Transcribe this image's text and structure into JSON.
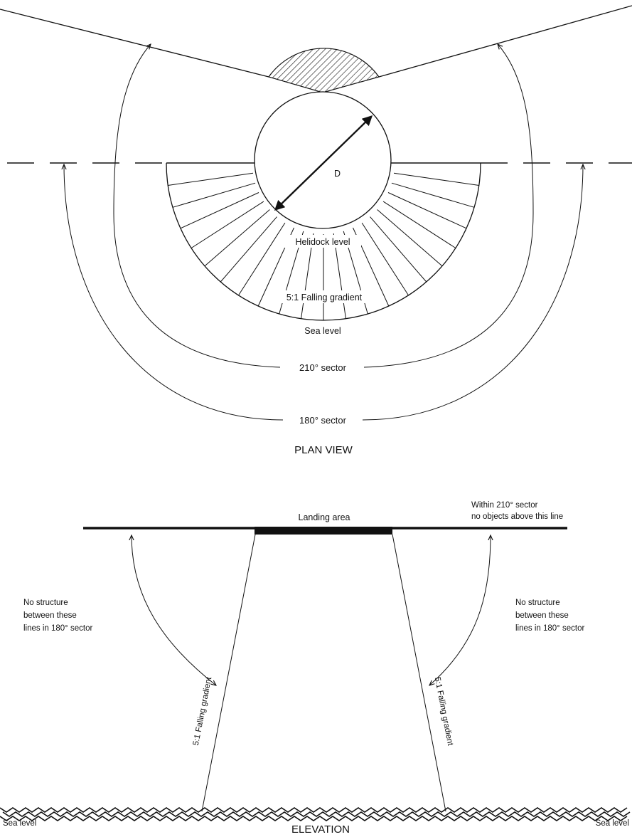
{
  "plan_view": {
    "title": "PLAN VIEW",
    "diameter_label": "D",
    "helidock_level": "Helidock level",
    "falling_gradient": "5:1 Falling gradient",
    "sea_level": "Sea level",
    "sector_210": "210° sector",
    "sector_180": "180° sector"
  },
  "elevation": {
    "title": "ELEVATION",
    "landing_area": "Landing area",
    "within_sector_line1": "Within 210° sector",
    "within_sector_line2": "no objects above this line",
    "no_structure_left": [
      "No structure",
      "between these",
      "lines in 180° sector"
    ],
    "no_structure_right": [
      "No structure",
      "between these",
      "lines in 180° sector"
    ],
    "gradient_left": "5:1 Falling gradient",
    "gradient_right": "5:1 Falling gradient",
    "sea_level_left": "Sea level",
    "sea_level_right": "Sea level"
  }
}
